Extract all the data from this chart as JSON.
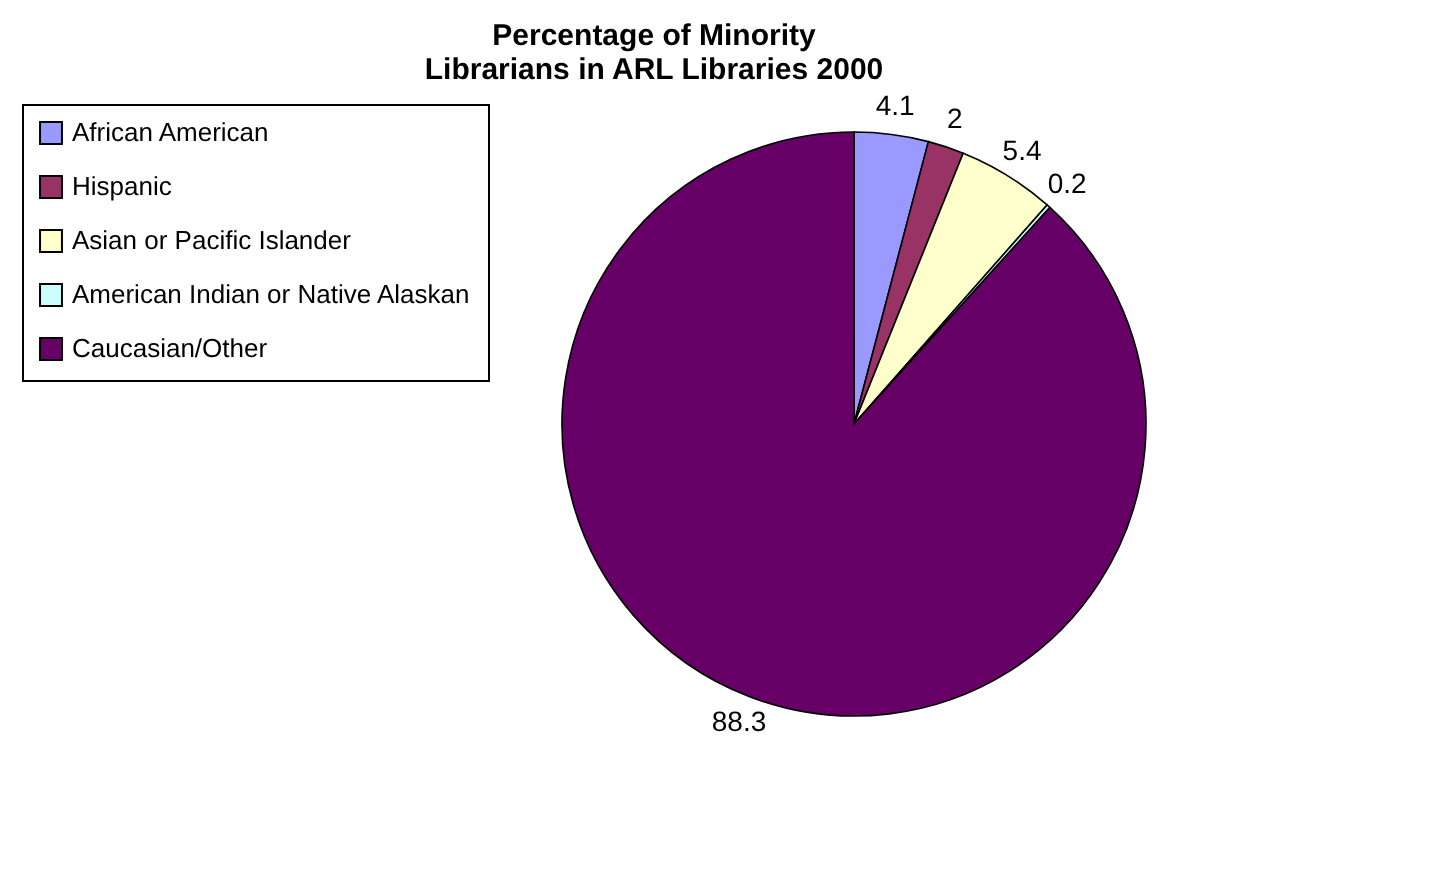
{
  "chart_data": {
    "type": "pie",
    "title": "Percentage of Minority Librarians in ARL Libraries 2000",
    "categories": [
      "African American",
      "Hispanic",
      "Asian or Pacific Islander",
      "American Indian or Native Alaskan",
      "Caucasian/Other"
    ],
    "values": [
      4.1,
      2,
      5.4,
      0.2,
      88.3
    ],
    "colors": [
      "#9999ff",
      "#993366",
      "#ffffcc",
      "#ccffff",
      "#660066"
    ],
    "data_labels": true,
    "legend": "left"
  }
}
